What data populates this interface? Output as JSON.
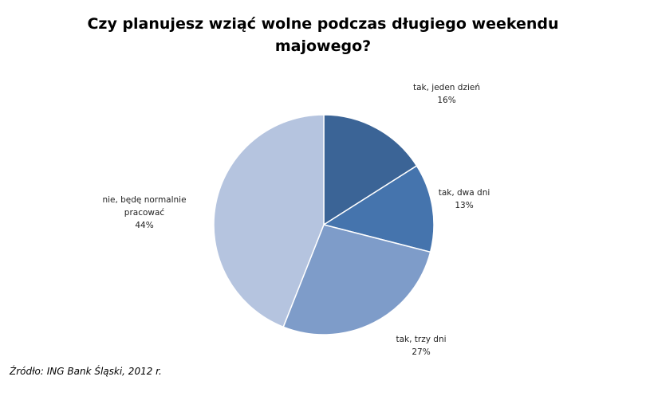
{
  "chart_data": {
    "type": "pie",
    "title": "Czy planujesz wziąć wolne podczas długiego weekendu majowego?",
    "slices": [
      {
        "label": "tak, jeden dzień",
        "value": 16,
        "value_label": "16%",
        "color": "#3b6496"
      },
      {
        "label": "tak, dwa dni",
        "value": 13,
        "value_label": "13%",
        "color": "#4574ad"
      },
      {
        "label": "tak, trzy dni",
        "value": 27,
        "value_label": "27%",
        "color": "#7e9cc9"
      },
      {
        "label": "nie, będę normalnie pracować",
        "value": 44,
        "value_label": "44%",
        "color": "#b5c4df"
      }
    ],
    "start": "12 o'clock",
    "direction": "clockwise"
  },
  "source": "Źródło: ING Bank Śląski, 2012 r."
}
